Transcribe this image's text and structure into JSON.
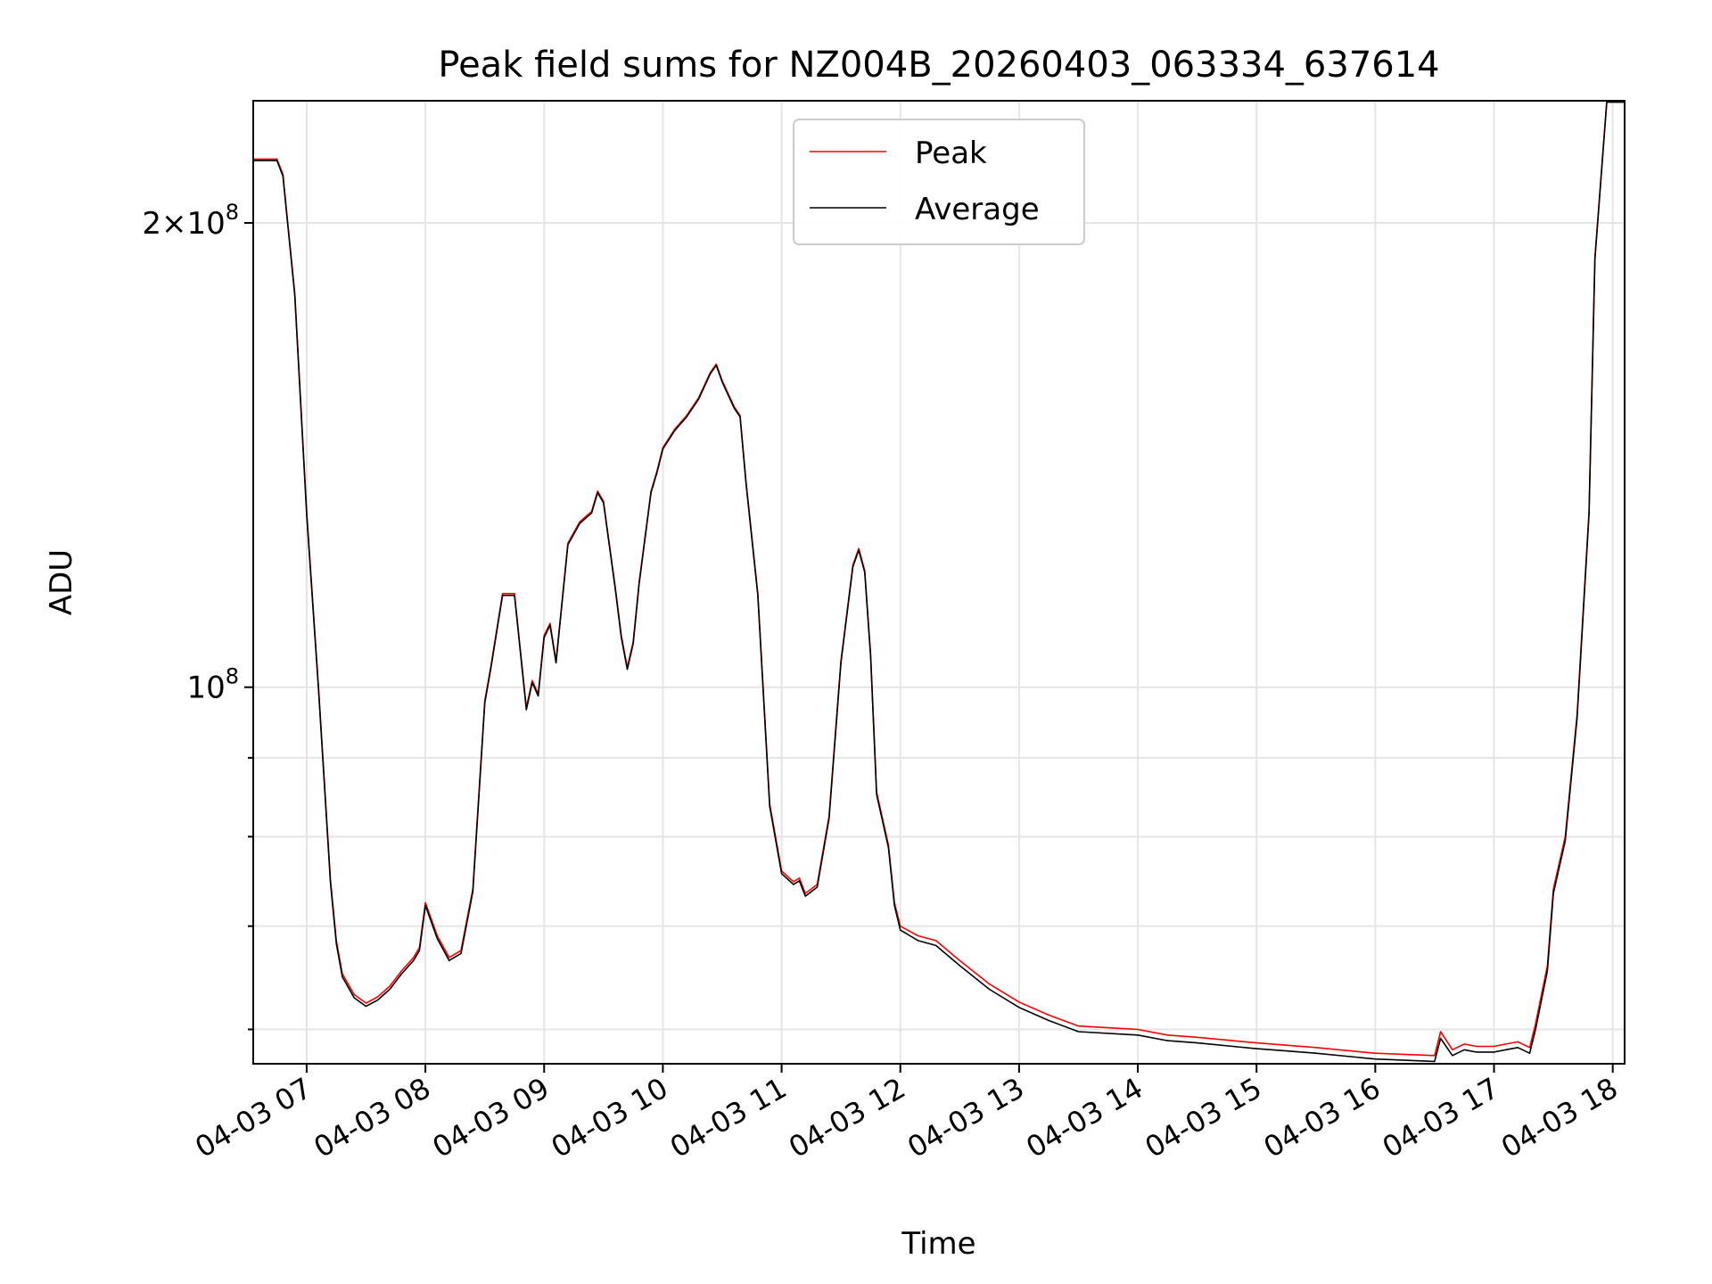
{
  "chart_data": {
    "type": "line",
    "title": "Peak field sums for NZ004B_20260403_063334_637614",
    "xlabel": "Time",
    "ylabel": "ADU",
    "yscale": "log",
    "grid": true,
    "legend_position": "upper center",
    "xlim_hours": [
      6.55,
      18.1
    ],
    "ylim": [
      57000000.0,
      240000000.0
    ],
    "x_ticks": [
      {
        "hour": 7,
        "label": "04-03 07"
      },
      {
        "hour": 8,
        "label": "04-03 08"
      },
      {
        "hour": 9,
        "label": "04-03 09"
      },
      {
        "hour": 10,
        "label": "04-03 10"
      },
      {
        "hour": 11,
        "label": "04-03 11"
      },
      {
        "hour": 12,
        "label": "04-03 12"
      },
      {
        "hour": 13,
        "label": "04-03 13"
      },
      {
        "hour": 14,
        "label": "04-03 14"
      },
      {
        "hour": 15,
        "label": "04-03 15"
      },
      {
        "hour": 16,
        "label": "04-03 16"
      },
      {
        "hour": 17,
        "label": "04-03 17"
      },
      {
        "hour": 18,
        "label": "04-03 18"
      }
    ],
    "y_major_ticks": [
      {
        "value": 100000000,
        "base": "10",
        "exp": "8",
        "mantissa": ""
      },
      {
        "value": 200000000,
        "base": "10",
        "exp": "8",
        "mantissa": "2"
      }
    ],
    "y_minor_ticks": [
      60000000,
      70000000,
      80000000,
      90000000
    ],
    "series": [
      {
        "name": "Peak",
        "color": "#ff0000",
        "x": [
          6.55,
          6.75,
          6.8,
          6.9,
          7.0,
          7.1,
          7.2,
          7.25,
          7.3,
          7.4,
          7.5,
          7.6,
          7.7,
          7.8,
          7.9,
          7.95,
          8.0,
          8.1,
          8.2,
          8.3,
          8.4,
          8.5,
          8.55,
          8.65,
          8.75,
          8.85,
          8.9,
          8.95,
          9.0,
          9.05,
          9.1,
          9.2,
          9.3,
          9.4,
          9.45,
          9.5,
          9.6,
          9.65,
          9.7,
          9.75,
          9.8,
          9.9,
          9.95,
          10.0,
          10.1,
          10.2,
          10.3,
          10.4,
          10.45,
          10.5,
          10.6,
          10.65,
          10.7,
          10.8,
          10.9,
          11.0,
          11.1,
          11.15,
          11.2,
          11.3,
          11.4,
          11.5,
          11.6,
          11.65,
          11.7,
          11.75,
          11.8,
          11.9,
          11.95,
          12.0,
          12.15,
          12.3,
          12.5,
          12.75,
          13.0,
          13.25,
          13.5,
          14.0,
          14.25,
          14.5,
          15.0,
          15.25,
          15.5,
          16.0,
          16.5,
          16.55,
          16.65,
          16.75,
          16.85,
          17.0,
          17.1,
          17.2,
          17.3,
          17.35,
          17.45,
          17.5,
          17.6,
          17.7,
          17.8,
          17.85,
          17.95,
          18.1
        ],
        "values": [
          220000000,
          220000000,
          215000000,
          180000000,
          130000000,
          100000000,
          75000000,
          68500000,
          65200000,
          63200000,
          62400000,
          63000000,
          64000000,
          65500000,
          66800000,
          67800000,
          72500000,
          69000000,
          66800000,
          67500000,
          74000000,
          98000000,
          103000000,
          115000000,
          115000000,
          97000000,
          101000000,
          99000000,
          108000000,
          110000000,
          104000000,
          124000000,
          128000000,
          130000000,
          134000000,
          132000000,
          116000000,
          108000000,
          103000000,
          107000000,
          117000000,
          134000000,
          138000000,
          143000000,
          147000000,
          150000000,
          154000000,
          160000000,
          162000000,
          158000000,
          152000000,
          150000000,
          136000000,
          115000000,
          84000000,
          76000000,
          74800000,
          75200000,
          73500000,
          74500000,
          82500000,
          104000000,
          120000000,
          123000000,
          119000000,
          105000000,
          85500000,
          79000000,
          72500000,
          70000000,
          69000000,
          68500000,
          66500000,
          64200000,
          62500000,
          61300000,
          60300000,
          60000000,
          59500000,
          59300000,
          58800000,
          58600000,
          58400000,
          57900000,
          57700000,
          59800000,
          58200000,
          58700000,
          58500000,
          58500000,
          58700000,
          58900000,
          58400000,
          60500000,
          66000000,
          74000000,
          80000000,
          96000000,
          130000000,
          190000000,
          240000000,
          240000000
        ]
      },
      {
        "name": "Average",
        "color": "#000000",
        "x": [
          6.55,
          6.75,
          6.8,
          6.9,
          7.0,
          7.1,
          7.2,
          7.25,
          7.3,
          7.4,
          7.5,
          7.6,
          7.7,
          7.8,
          7.9,
          7.95,
          8.0,
          8.1,
          8.2,
          8.3,
          8.4,
          8.5,
          8.55,
          8.65,
          8.75,
          8.85,
          8.9,
          8.95,
          9.0,
          9.05,
          9.1,
          9.2,
          9.3,
          9.4,
          9.45,
          9.5,
          9.6,
          9.65,
          9.7,
          9.75,
          9.8,
          9.9,
          9.95,
          10.0,
          10.1,
          10.2,
          10.3,
          10.4,
          10.45,
          10.5,
          10.6,
          10.65,
          10.7,
          10.8,
          10.9,
          11.0,
          11.1,
          11.15,
          11.2,
          11.3,
          11.4,
          11.5,
          11.6,
          11.65,
          11.7,
          11.75,
          11.8,
          11.9,
          11.95,
          12.0,
          12.15,
          12.3,
          12.5,
          12.75,
          13.0,
          13.25,
          13.5,
          14.0,
          14.25,
          14.5,
          15.0,
          15.25,
          15.5,
          16.0,
          16.5,
          16.55,
          16.65,
          16.75,
          16.85,
          17.0,
          17.1,
          17.2,
          17.3,
          17.35,
          17.45,
          17.5,
          17.6,
          17.7,
          17.8,
          17.85,
          17.95,
          18.1
        ],
        "values": [
          219500000,
          219500000,
          214500000,
          179500000,
          129500000,
          99700000,
          74700000,
          68200000,
          64900000,
          62900000,
          62100000,
          62700000,
          63700000,
          65200000,
          66500000,
          67500000,
          72200000,
          68700000,
          66500000,
          67200000,
          73700000,
          97700000,
          102700000,
          114700000,
          114700000,
          96700000,
          100700000,
          98700000,
          107700000,
          109700000,
          103700000,
          123700000,
          127700000,
          129700000,
          133700000,
          131700000,
          115700000,
          107700000,
          102700000,
          106700000,
          116700000,
          133700000,
          137700000,
          142700000,
          146700000,
          149700000,
          153700000,
          159700000,
          161700000,
          157700000,
          151700000,
          149700000,
          135700000,
          114700000,
          83700000,
          75700000,
          74500000,
          74900000,
          73200000,
          74200000,
          82200000,
          103700000,
          119700000,
          122700000,
          118700000,
          104700000,
          85200000,
          78700000,
          72200000,
          69600000,
          68500000,
          68000000,
          66000000,
          63700000,
          62000000,
          60800000,
          59800000,
          59500000,
          59000000,
          58800000,
          58300000,
          58100000,
          57900000,
          57400000,
          57200000,
          59200000,
          57700000,
          58200000,
          58000000,
          58000000,
          58200000,
          58400000,
          57900000,
          60000000,
          65500000,
          73500000,
          79500000,
          95500000,
          129500000,
          189500000,
          239500000,
          239500000
        ]
      }
    ]
  }
}
